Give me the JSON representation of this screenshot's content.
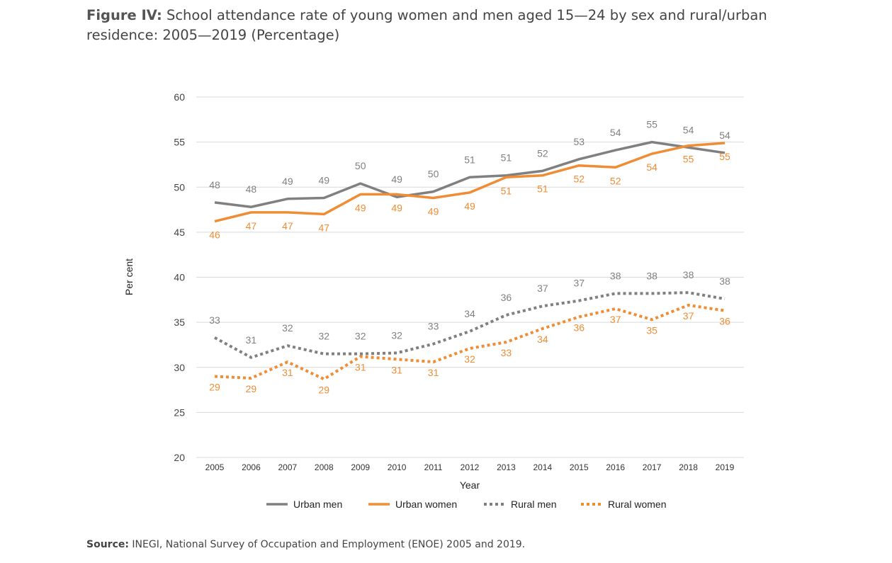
{
  "figure": {
    "label": "Figure IV:",
    "title": "School attendance rate of young women and men aged 15—24 by sex and rural/urban residence: 2005—2019 (Percentage)"
  },
  "source": {
    "label": "Source:",
    "text": "INEGI, National Survey of Occupation and Employment (ENOE) 2005 and 2019."
  },
  "chart_data": {
    "type": "line",
    "xlabel": "Year",
    "ylabel": "Per cent",
    "ylim": [
      20,
      60
    ],
    "yticks": [
      20,
      25,
      30,
      35,
      40,
      45,
      50,
      55,
      60
    ],
    "grid": true,
    "legend_position": "bottom",
    "x": [
      "2005",
      "2006",
      "2007",
      "2008",
      "2009",
      "2010",
      "2011",
      "2012",
      "2013",
      "2014",
      "2015",
      "2016",
      "2017",
      "2018",
      "2019"
    ],
    "series": [
      {
        "name": "Urban men",
        "color": "#808080",
        "style": "solid",
        "values": [
          48.3,
          47.8,
          48.7,
          48.8,
          50.4,
          48.9,
          49.5,
          51.1,
          51.3,
          51.8,
          53.1,
          54.1,
          55.0,
          54.4,
          53.8
        ],
        "labels": [
          "48",
          "48",
          "49",
          "49",
          "50",
          "49",
          "50",
          "51",
          "51",
          "52",
          "53",
          "54",
          "55",
          "54",
          "54"
        ]
      },
      {
        "name": "Urban women",
        "color": "#f08c34",
        "style": "solid",
        "values": [
          46.2,
          47.2,
          47.2,
          47.0,
          49.2,
          49.2,
          48.8,
          49.4,
          51.1,
          51.3,
          52.4,
          52.2,
          53.7,
          54.6,
          54.9
        ],
        "labels": [
          "46",
          "47",
          "47",
          "47",
          "49",
          "49",
          "49",
          "49",
          "51",
          "51",
          "52",
          "52",
          "54",
          "55",
          "55"
        ]
      },
      {
        "name": "Rural men",
        "color": "#808080",
        "style": "dotted",
        "values": [
          33.3,
          31.1,
          32.4,
          31.5,
          31.5,
          31.6,
          32.6,
          34.0,
          35.8,
          36.8,
          37.4,
          38.2,
          38.2,
          38.3,
          37.6
        ],
        "labels": [
          "33",
          "31",
          "32",
          "32",
          "32",
          "32",
          "33",
          "34",
          "36",
          "37",
          "37",
          "38",
          "38",
          "38",
          "38"
        ]
      },
      {
        "name": "Rural women",
        "color": "#f08c34",
        "style": "dotted",
        "values": [
          29.0,
          28.8,
          30.6,
          28.7,
          31.2,
          30.9,
          30.6,
          32.1,
          32.8,
          34.3,
          35.6,
          36.5,
          35.3,
          36.9,
          36.3
        ],
        "labels": [
          "29",
          "29",
          "31",
          "29",
          "31",
          "31",
          "31",
          "32",
          "33",
          "34",
          "36",
          "37",
          "35",
          "37",
          "36"
        ]
      }
    ]
  }
}
